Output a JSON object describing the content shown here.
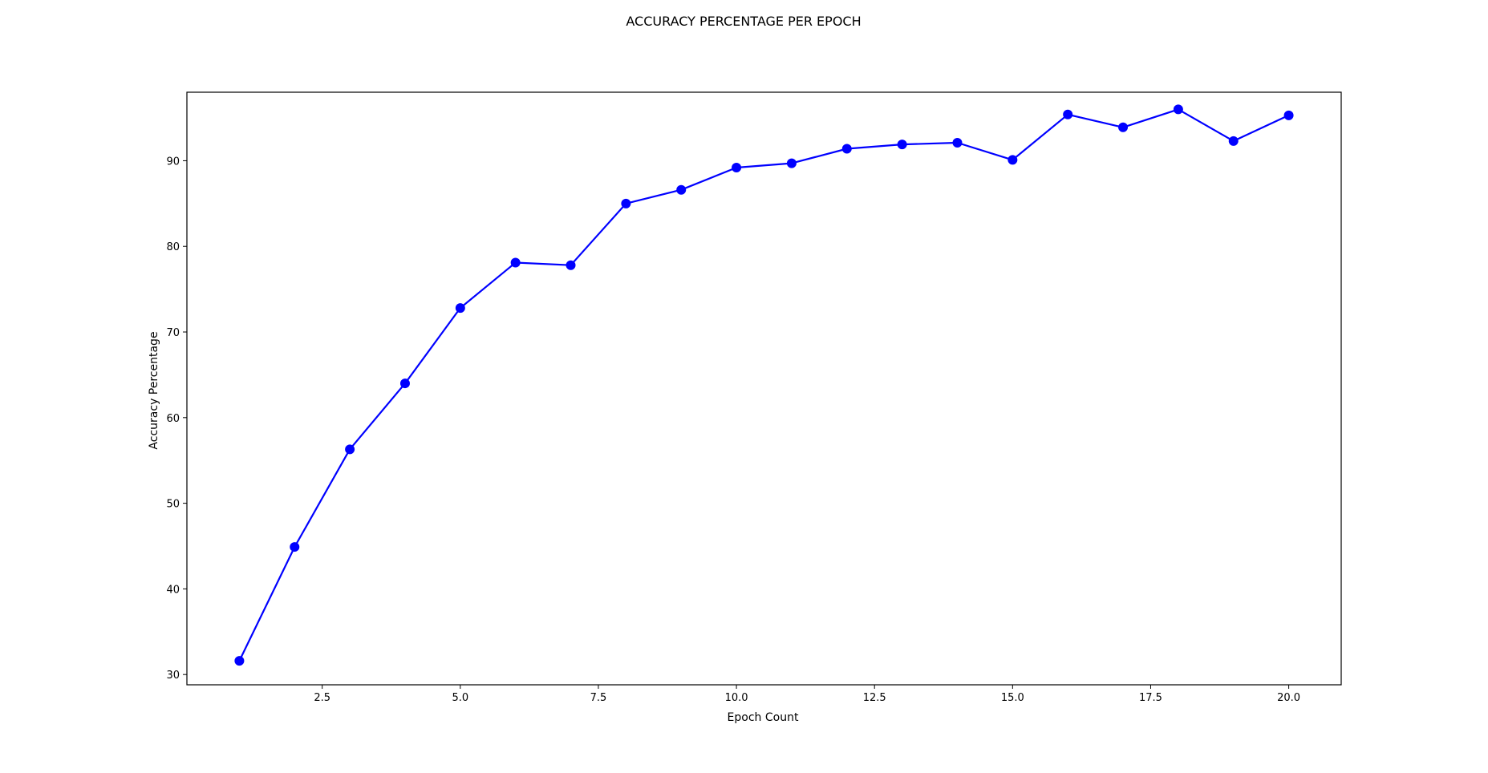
{
  "chart_data": {
    "type": "line",
    "title": "ACCURACY PERCENTAGE PER EPOCH",
    "xlabel": "Epoch Count",
    "ylabel": "Accuracy Percentage",
    "xlim": [
      0.05,
      20.95
    ],
    "ylim": [
      28.8,
      98.0
    ],
    "xticks": [
      2.5,
      5.0,
      7.5,
      10.0,
      12.5,
      15.0,
      17.5,
      20.0
    ],
    "xtick_labels": [
      "2.5",
      "5.0",
      "7.5",
      "10.0",
      "12.5",
      "15.0",
      "17.5",
      "20.0"
    ],
    "yticks": [
      30,
      40,
      50,
      60,
      70,
      80,
      90
    ],
    "ytick_labels": [
      "30",
      "40",
      "50",
      "60",
      "70",
      "80",
      "90"
    ],
    "grid": false,
    "legend": false,
    "color": "#0000ff",
    "marker": "circle",
    "x": [
      1,
      2,
      3,
      4,
      5,
      6,
      7,
      8,
      9,
      10,
      11,
      12,
      13,
      14,
      15,
      16,
      17,
      18,
      19,
      20
    ],
    "y": [
      31.6,
      44.9,
      56.3,
      64.0,
      72.8,
      78.1,
      77.8,
      85.0,
      86.6,
      89.2,
      89.7,
      91.4,
      91.9,
      92.1,
      90.1,
      95.4,
      93.9,
      96.0,
      92.3,
      95.3
    ]
  }
}
